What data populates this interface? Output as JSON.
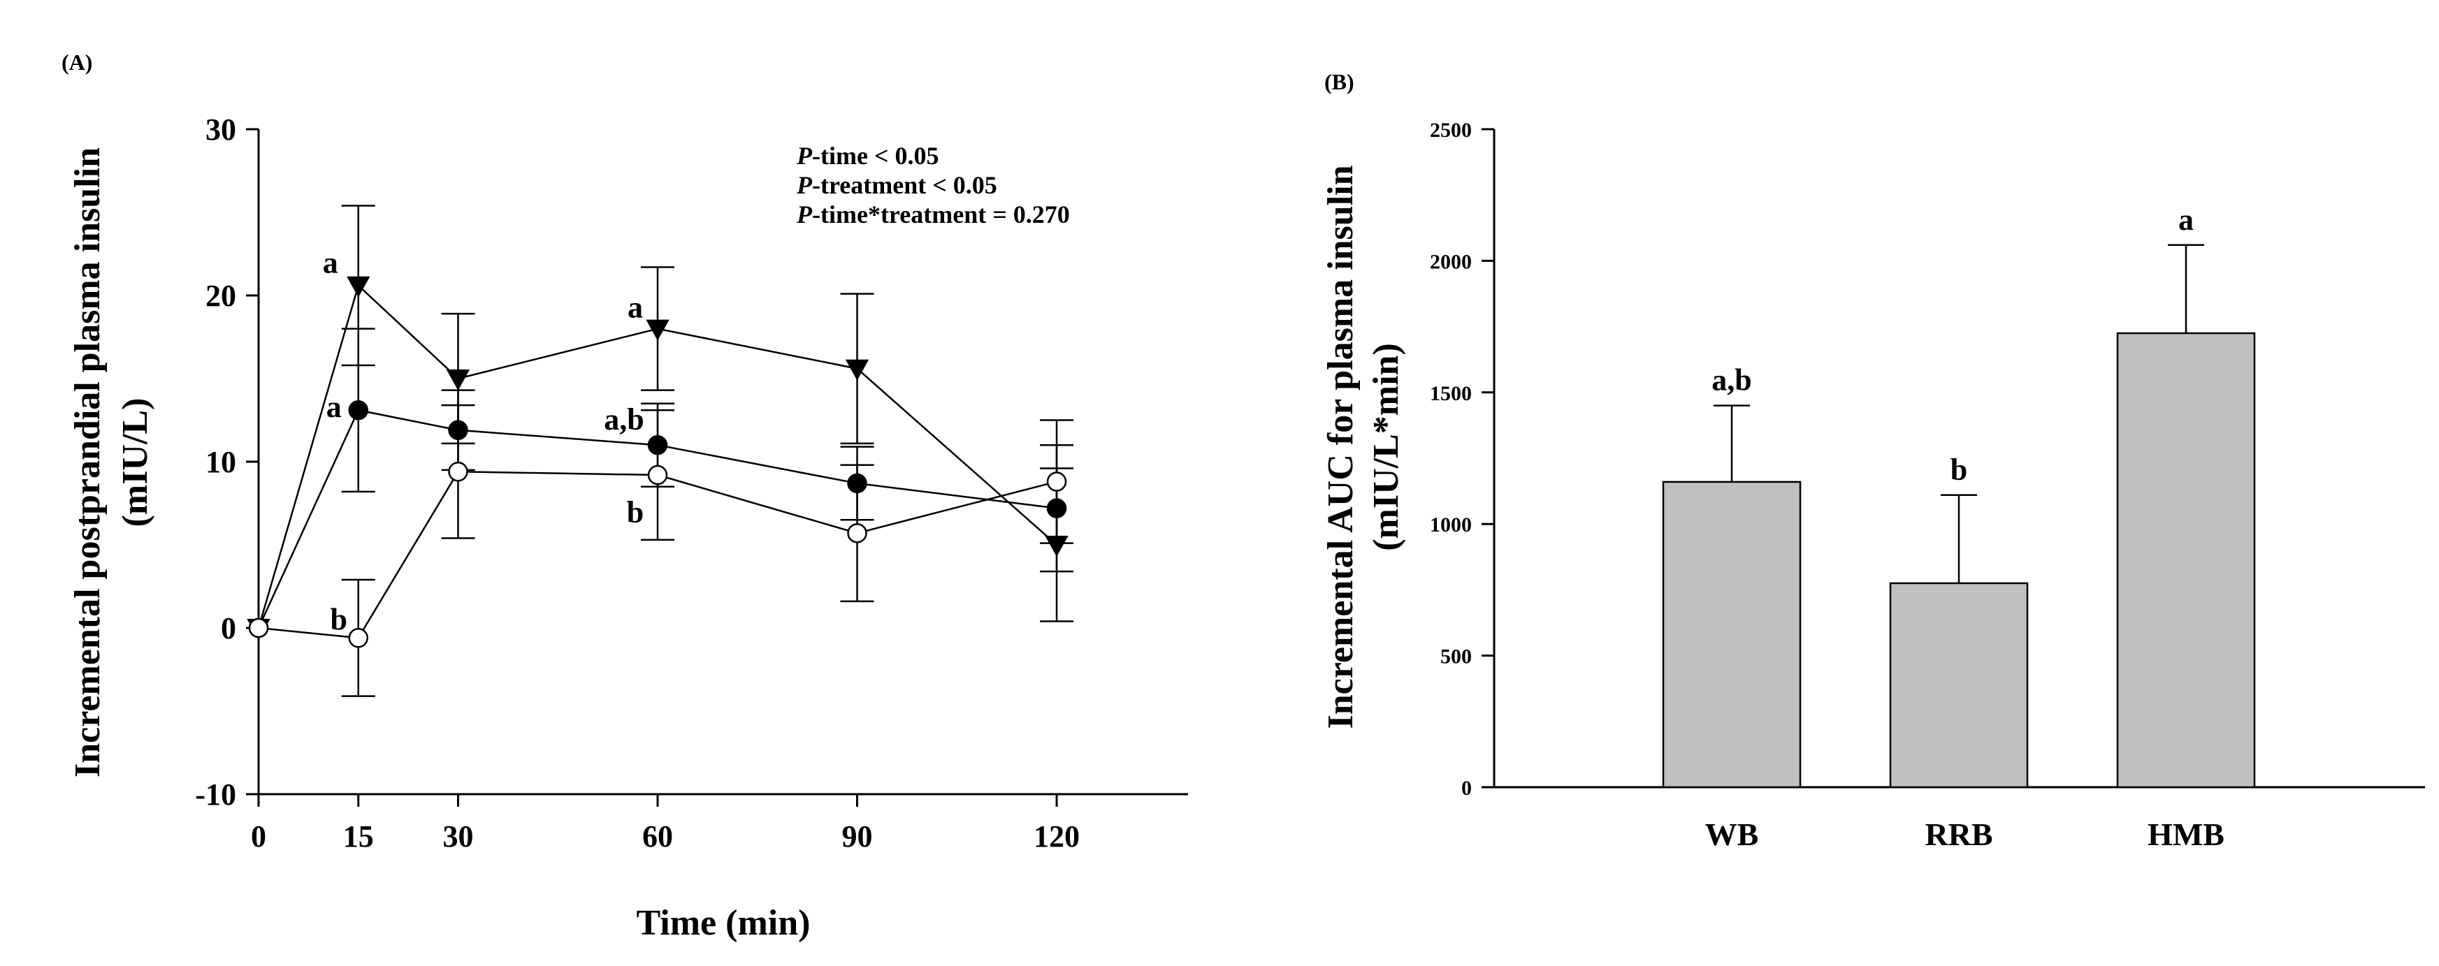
{
  "chart_data": [
    {
      "panel": "(A)",
      "type": "line",
      "title": "",
      "xlabel": "Time (min)",
      "ylabel": "Incremental postprandial plasma insulin (mIU/L)",
      "ylabel_lines": [
        "Incremental postprandial plasma insulin",
        "(mIU/L)"
      ],
      "xlim": [
        0,
        135
      ],
      "ylim": [
        -10,
        30
      ],
      "xticks": [
        0,
        15,
        30,
        60,
        90,
        120
      ],
      "yticks": [
        -10,
        0,
        10,
        20,
        30
      ],
      "x": [
        0,
        15,
        30,
        60,
        90,
        120
      ],
      "series": [
        {
          "name": "triangle-down (filled)",
          "marker": "triangle-down",
          "fill": "#000000",
          "values": [
            0,
            20.6,
            15.0,
            18.0,
            15.6,
            5.0
          ],
          "errors": [
            0,
            4.8,
            3.9,
            3.7,
            4.5,
            4.6
          ]
        },
        {
          "name": "circle (filled)",
          "marker": "circle",
          "fill": "#000000",
          "values": [
            0,
            13.1,
            11.9,
            11.0,
            8.7,
            7.2
          ],
          "errors": [
            0,
            4.9,
            2.4,
            2.5,
            2.2,
            3.8
          ]
        },
        {
          "name": "circle (open)",
          "marker": "circle",
          "fill": "#ffffff",
          "values": [
            0,
            -0.6,
            9.4,
            9.2,
            5.7,
            8.8
          ],
          "errors": [
            0,
            3.5,
            4.0,
            3.9,
            4.1,
            3.7
          ]
        }
      ],
      "annotations": [
        {
          "text": "a",
          "x": 15,
          "y": 20.6,
          "series": 0
        },
        {
          "text": "a",
          "x": 15,
          "y": 13.1,
          "series": 1
        },
        {
          "text": "b",
          "x": 15,
          "y": -0.6,
          "series": 2
        },
        {
          "text": "a",
          "x": 60,
          "y": 18.0,
          "series": 0
        },
        {
          "text": "a,b",
          "x": 60,
          "y": 11.0,
          "series": 1
        },
        {
          "text": "b",
          "x": 60,
          "y": 9.2,
          "series": 2
        }
      ],
      "stats": [
        {
          "italic": "P",
          "rest": "-time < 0.05"
        },
        {
          "italic": "P",
          "rest": "-treatment < 0.05"
        },
        {
          "italic": "P",
          "rest": "-time*treatment = 0.270"
        }
      ]
    },
    {
      "panel": "(B)",
      "type": "bar",
      "title": "",
      "xlabel": "",
      "ylabel": "Incremental AUC for plasma insulin (mIU/L*min)",
      "ylabel_lines": [
        "Incremental AUC for plasma insulin",
        "(mIU/L*min)"
      ],
      "ylim": [
        0,
        2500
      ],
      "yticks": [
        0,
        500,
        1000,
        1500,
        2000,
        2500
      ],
      "categories": [
        "WB",
        "RRB",
        "HMB"
      ],
      "values": [
        1160,
        775,
        1725
      ],
      "errors": [
        290,
        335,
        335
      ],
      "significance": [
        "a,b",
        "b",
        "a"
      ],
      "bar_color": "#c0c0c0"
    }
  ]
}
